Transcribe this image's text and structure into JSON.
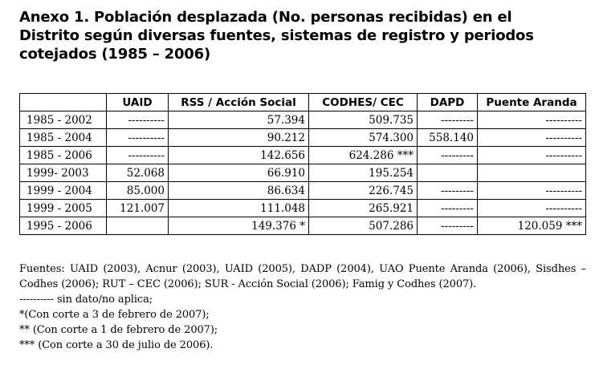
{
  "title_lines": [
    "Anexo 1. Población desplazada (No. personas recibidas) en el",
    "Distrito según diversas fuentes, sistemas de registro y periodos",
    "cotejados (1985 – 2006)"
  ],
  "table": {
    "headers": [
      "",
      "UAID",
      "RSS / Acción Social",
      "CODHES/ CEC",
      "DAPD",
      "Puente Aranda"
    ],
    "rows": [
      [
        "1985 - 2002",
        "----------",
        "57.394",
        "509.735",
        "---------",
        "----------"
      ],
      [
        "1985 - 2004",
        "----------",
        "90.212",
        "574.300",
        "558.140",
        "----------"
      ],
      [
        "1985 - 2006",
        "----------",
        "142.656",
        "624.286 ***",
        "---------",
        "----------"
      ],
      [
        "1999- 2003",
        "52.068",
        "66.910",
        "195.254",
        "",
        ""
      ],
      [
        "1999 - 2004",
        "85.000",
        "86.634",
        "226.745",
        "---------",
        "----------"
      ],
      [
        "1999 - 2005",
        "121.007",
        "111.048",
        "265.921",
        "---------",
        "----------"
      ],
      [
        "1995 - 2006",
        "",
        "149.376 *",
        "507.286",
        "---------",
        "120.059 ***"
      ]
    ]
  },
  "notes": {
    "sources": "Fuentes: UAID (2003), Acnur (2003), UAID (2005), DADP (2004), UAO Puente Aranda (2006), Sisdhes – Codhes (2006); RUT – CEC (2006); SUR - Acción Social (2006); Famig y Codhes (2007).",
    "legend": [
      "---------- sin dato/no aplica;",
      "*(Con corte a 3 de febrero de 2007);",
      "** (Con corte a 1 de febrero de 2007);",
      "*** (Con corte a 30 de julio de 2006)."
    ]
  }
}
